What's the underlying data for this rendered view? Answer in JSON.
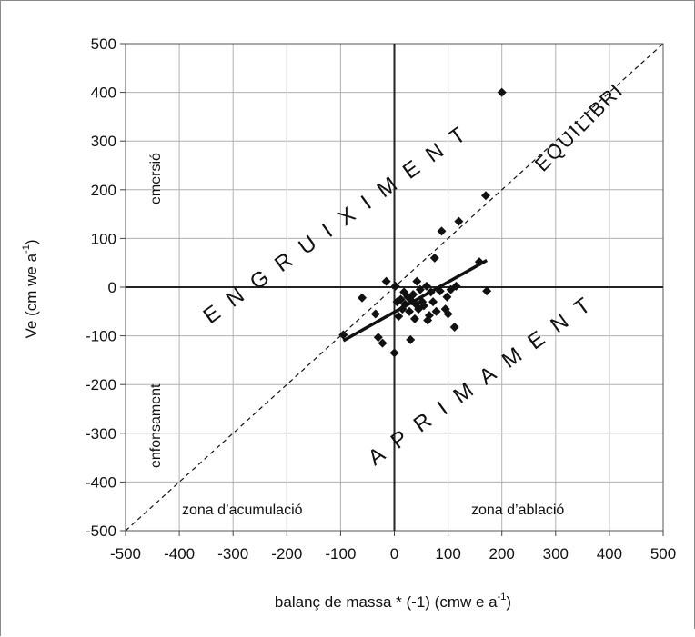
{
  "chart_data": {
    "type": "scatter",
    "title": "",
    "xlabel": "balanç de massa * (-1) (cmw e a",
    "xlabel_sup": "-1",
    "xlabel_tail": ")",
    "ylabel": "Ve (cm we a",
    "ylabel_sup": "-1",
    "ylabel_tail": ")",
    "xlim": [
      -500,
      500
    ],
    "ylim": [
      -500,
      500
    ],
    "grid": true,
    "x_ticks": [
      "-500",
      "-400",
      "-300",
      "-200",
      "-100",
      "0",
      "100",
      "200",
      "300",
      "400",
      "500"
    ],
    "y_ticks": [
      "500",
      "400",
      "300",
      "200",
      "100",
      "0",
      "-100",
      "-200",
      "-300",
      "-400",
      "-500"
    ],
    "points": [
      {
        "x": -95,
        "y": -98
      },
      {
        "x": -60,
        "y": -22
      },
      {
        "x": -35,
        "y": -55
      },
      {
        "x": -30,
        "y": -103
      },
      {
        "x": -22,
        "y": -115
      },
      {
        "x": -15,
        "y": 12
      },
      {
        "x": 0,
        "y": -135
      },
      {
        "x": 2,
        "y": 2
      },
      {
        "x": 5,
        "y": -30
      },
      {
        "x": 8,
        "y": -60
      },
      {
        "x": 12,
        "y": -25
      },
      {
        "x": 15,
        "y": -45
      },
      {
        "x": 18,
        "y": -10
      },
      {
        "x": 20,
        "y": -35
      },
      {
        "x": 25,
        "y": -20
      },
      {
        "x": 28,
        "y": -50
      },
      {
        "x": 30,
        "y": -108
      },
      {
        "x": 32,
        "y": -28
      },
      {
        "x": 35,
        "y": -15
      },
      {
        "x": 38,
        "y": -65
      },
      {
        "x": 40,
        "y": -35
      },
      {
        "x": 42,
        "y": 12
      },
      {
        "x": 45,
        "y": -45
      },
      {
        "x": 48,
        "y": -5
      },
      {
        "x": 52,
        "y": -30
      },
      {
        "x": 55,
        "y": -38
      },
      {
        "x": 60,
        "y": 2
      },
      {
        "x": 62,
        "y": -68
      },
      {
        "x": 65,
        "y": -58
      },
      {
        "x": 68,
        "y": -10
      },
      {
        "x": 72,
        "y": -30
      },
      {
        "x": 75,
        "y": 60
      },
      {
        "x": 78,
        "y": -50
      },
      {
        "x": 85,
        "y": -8
      },
      {
        "x": 88,
        "y": 115
      },
      {
        "x": 95,
        "y": -45
      },
      {
        "x": 98,
        "y": -20
      },
      {
        "x": 100,
        "y": -55
      },
      {
        "x": 105,
        "y": -5
      },
      {
        "x": 112,
        "y": -82
      },
      {
        "x": 115,
        "y": 2
      },
      {
        "x": 120,
        "y": 135
      },
      {
        "x": 158,
        "y": 52
      },
      {
        "x": 170,
        "y": 188
      },
      {
        "x": 172,
        "y": -8
      },
      {
        "x": 200,
        "y": 400
      }
    ],
    "regression": {
      "x": [
        -95,
        172
      ],
      "y": [
        -110,
        55
      ]
    },
    "reference_line": {
      "x": [
        -500,
        500
      ],
      "y": [
        -500,
        500
      ]
    },
    "annotations": {
      "emersio": "emersió",
      "enfonsament": "enfonsament",
      "zona_acumulacio": "zona d’acumulació",
      "zona_ablacio": "zona d’ablació",
      "engruiximent": "ENGRUIXIMENT",
      "aprimament": "APRIMAMENT",
      "equilibri": "EQUILIBRI"
    },
    "colors": {
      "marker": "#111111",
      "grid": "#b0b0b0",
      "axis": "#222222",
      "frame": "#808080"
    }
  }
}
